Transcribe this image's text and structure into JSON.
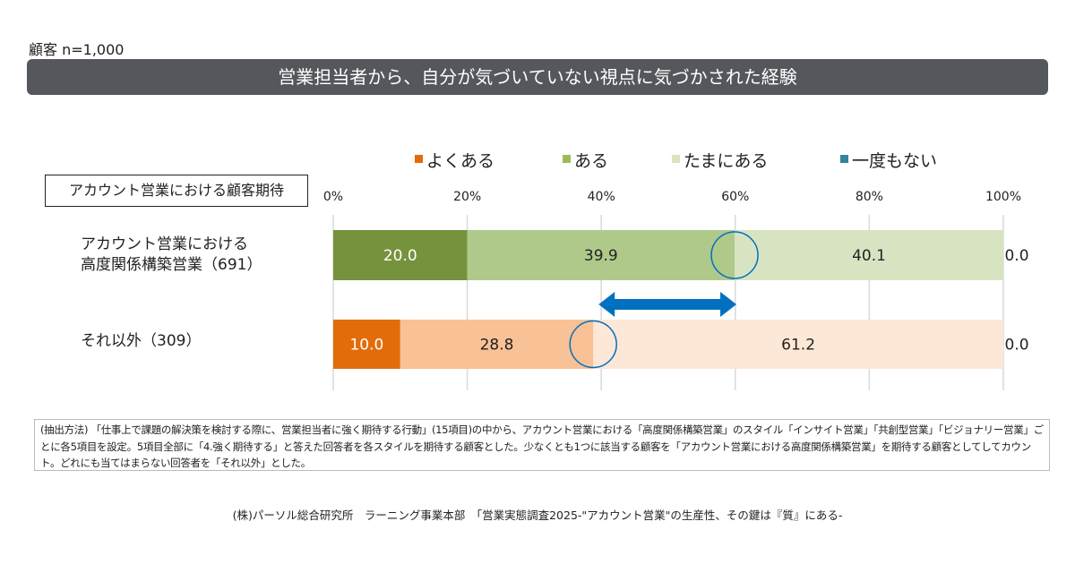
{
  "header": {
    "sample": "顧客 n=1,000",
    "title": "営業担当者から、自分が気づいていない視点に気づかされた経験"
  },
  "group_label": "アカウント営業における顧客期待",
  "chart_data": {
    "type": "bar",
    "orientation": "horizontal-stacked-100",
    "legend": [
      "よくある",
      "ある",
      "たまにある",
      "一度もない"
    ],
    "legend_placement": "top",
    "xticks": [
      "0%",
      "20%",
      "40%",
      "60%",
      "80%",
      "100%"
    ],
    "xlim": [
      0,
      100
    ],
    "categories": [
      {
        "line1": "アカウント営業における",
        "line2": "高度関係構築営業（691）"
      },
      {
        "line1": "それ以外（309）",
        "line2": ""
      }
    ],
    "series": [
      {
        "name": "よくある",
        "values": [
          20.0,
          10.0
        ],
        "labels": [
          "20.0",
          "10.0"
        ]
      },
      {
        "name": "ある",
        "values": [
          39.9,
          28.8
        ],
        "labels": [
          "39.9",
          "28.8"
        ]
      },
      {
        "name": "たまにある",
        "values": [
          40.1,
          61.2
        ],
        "labels": [
          "40.1",
          "61.2"
        ]
      },
      {
        "name": "一度もない",
        "values": [
          0.0,
          0.0
        ],
        "labels": [
          "0.0",
          "0.0"
        ]
      }
    ],
    "colors": {
      "legend": [
        "#e36c0a",
        "#9bbb59",
        "#d7e4bd",
        "#31859c"
      ],
      "row0": [
        "#76923c",
        "#afc98b",
        "#d8e4c1",
        "#31859c"
      ],
      "row1": [
        "#e36c0a",
        "#f9c196",
        "#fde7d7",
        "#31859c"
      ],
      "label_text": [
        "#ffffff",
        "#222222",
        "#222222",
        "#222222"
      ],
      "highlight": "#0070c0"
    }
  },
  "note": "(抽出方法) 「仕事上で課題の解決策を検討する際に、営業担当者に強く期待する行動」(15項目)の中から、アカウント営業における「高度関係構築営業」のスタイル「インサイト営業」「共創型営業」「ビジョナリー営業」ごとに各5項目を設定。5項目全部に「4.強く期待する」と答えた回答者を各スタイルを期待する顧客とした。少なくとも1つに該当する顧客を「アカウント営業における高度関係構築営業」を期待する顧客としてしてカウント。どれにも当てはまらない回答者を「それ以外」とした。",
  "source": "(株)パーソル総合研究所　ラーニング事業本部　「営業実態調査2025-\"アカウント営業\"の生産性、その鍵は『質』にある-"
}
